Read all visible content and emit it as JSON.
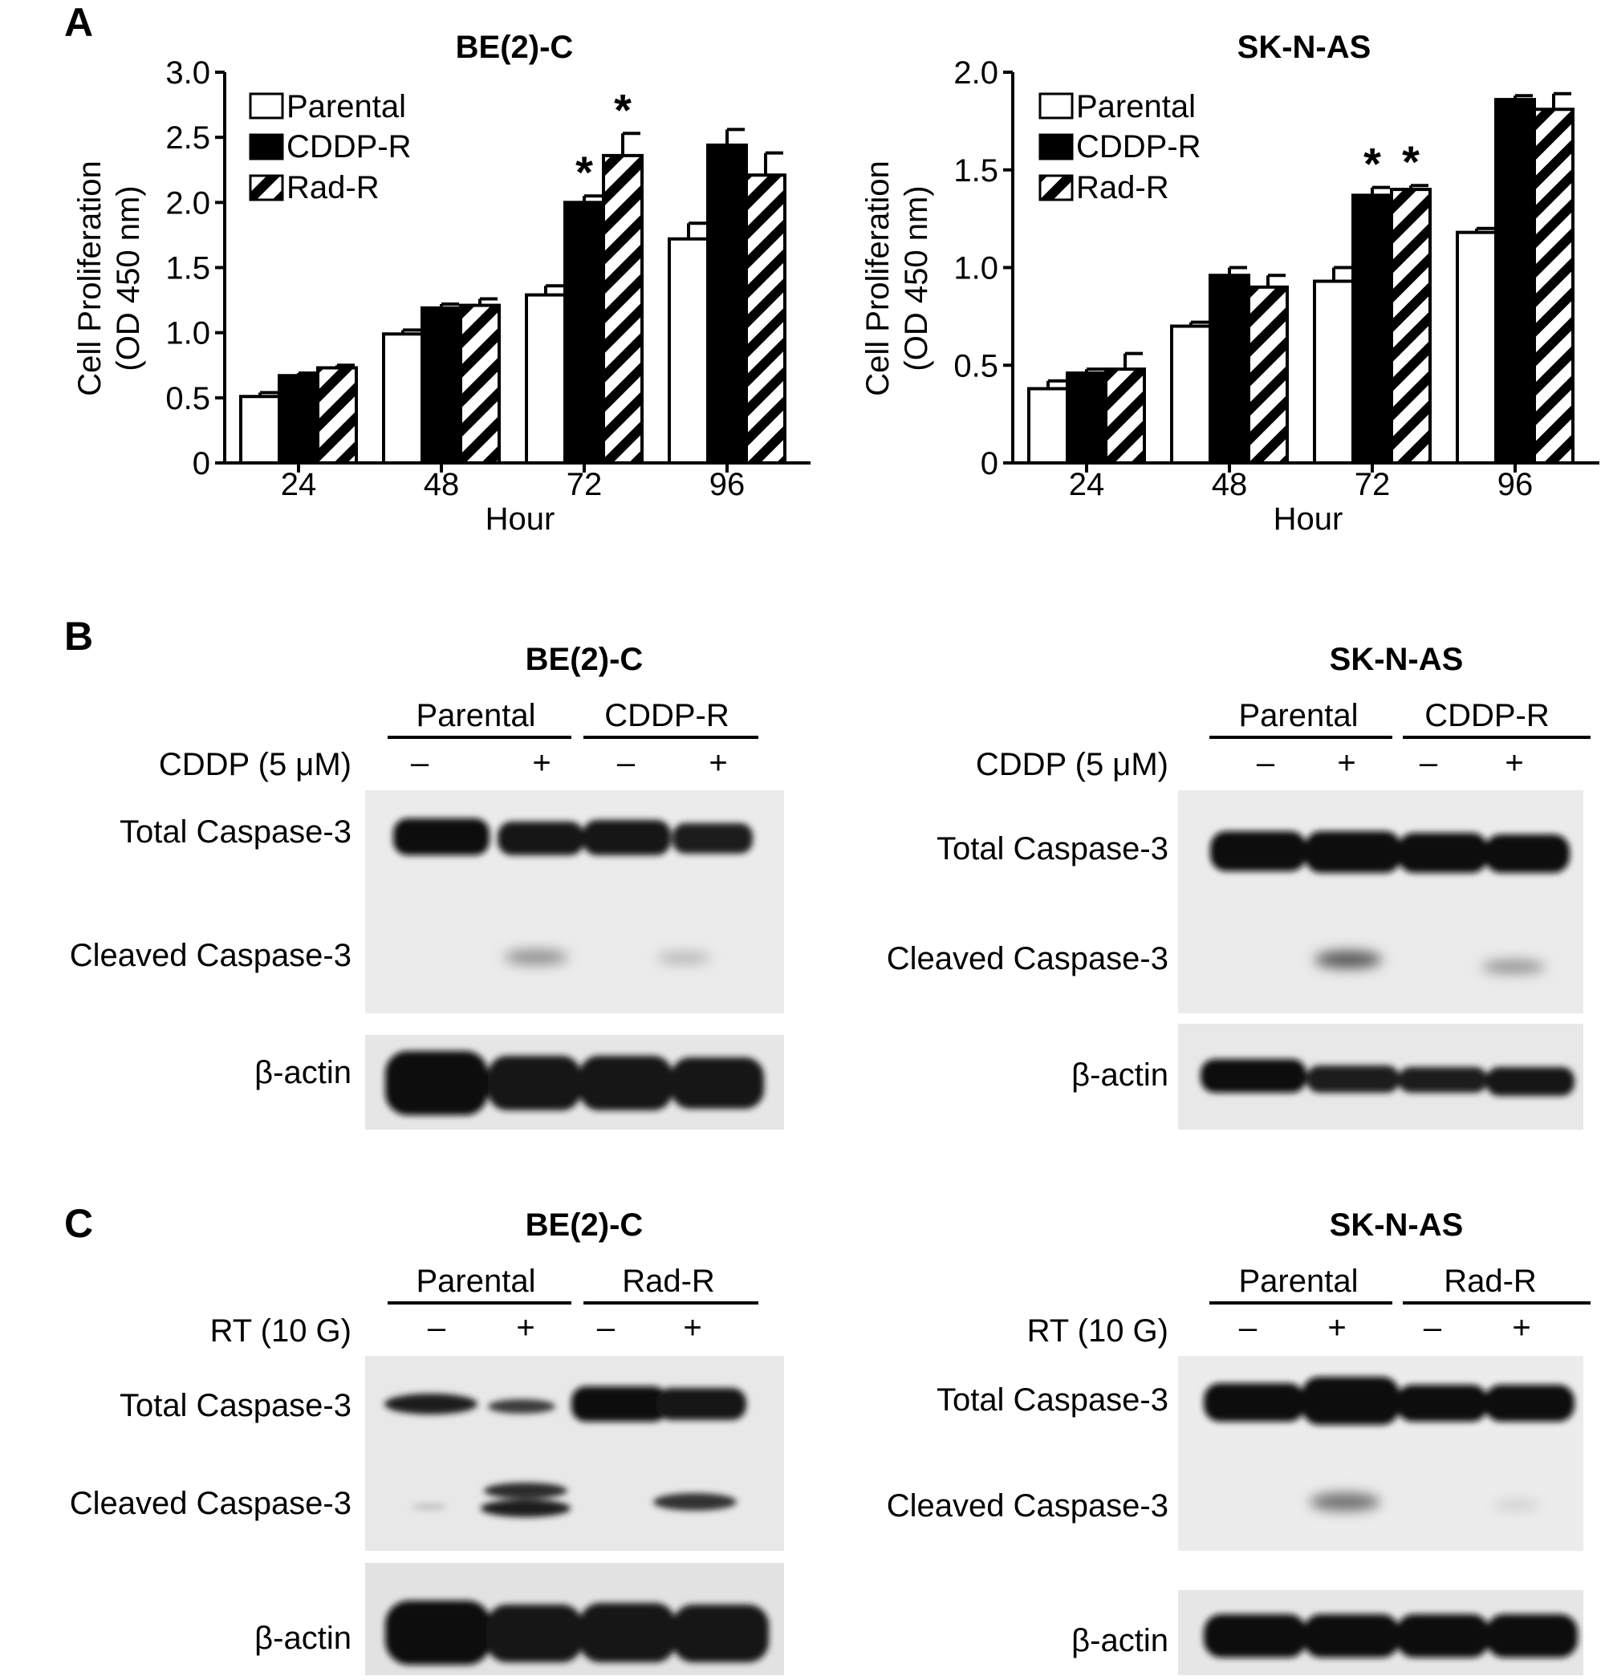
{
  "panel_letters": {
    "a": "A",
    "b": "B",
    "c": "C"
  },
  "chart_data": [
    {
      "type": "bar",
      "title": "BE(2)-C",
      "xlabel": "Hour",
      "ylabel": [
        "Cell Proliferation",
        "(OD 450 nm)"
      ],
      "categories": [
        "24",
        "48",
        "72",
        "96"
      ],
      "ylim": [
        0,
        3.0
      ],
      "yticks": [
        "0",
        "0.5",
        "1.0",
        "1.5",
        "2.0",
        "2.5",
        "3.0"
      ],
      "grid": false,
      "legend_position": "top-left",
      "series": [
        {
          "name": "Parental",
          "fill": "white",
          "values": [
            0.51,
            0.99,
            1.29,
            1.72
          ],
          "errors": [
            0.03,
            0.03,
            0.07,
            0.12
          ],
          "stars": [
            "",
            "",
            "",
            ""
          ]
        },
        {
          "name": "CDDP-R",
          "fill": "black",
          "values": [
            0.67,
            1.19,
            2.0,
            2.44
          ],
          "errors": [
            0.02,
            0.03,
            0.05,
            0.12
          ],
          "stars": [
            "",
            "",
            "*",
            ""
          ]
        },
        {
          "name": "Rad-R",
          "fill": "hatched",
          "values": [
            0.73,
            1.21,
            2.36,
            2.21
          ],
          "errors": [
            0.02,
            0.05,
            0.17,
            0.17
          ],
          "stars": [
            "",
            "",
            "*",
            ""
          ]
        }
      ]
    },
    {
      "type": "bar",
      "title": "SK-N-AS",
      "xlabel": "Hour",
      "ylabel": [
        "Cell Proliferation",
        "(OD 450 nm)"
      ],
      "categories": [
        "24",
        "48",
        "72",
        "96"
      ],
      "ylim": [
        0,
        2.0
      ],
      "yticks": [
        "0",
        "0.5",
        "1.0",
        "1.5",
        "2.0"
      ],
      "grid": false,
      "legend_position": "top-left",
      "series": [
        {
          "name": "Parental",
          "fill": "white",
          "values": [
            0.38,
            0.7,
            0.93,
            1.18
          ],
          "errors": [
            0.04,
            0.02,
            0.07,
            0.02
          ],
          "stars": [
            "",
            "",
            "",
            ""
          ]
        },
        {
          "name": "CDDP-R",
          "fill": "black",
          "values": [
            0.46,
            0.96,
            1.37,
            1.86
          ],
          "errors": [
            0.02,
            0.04,
            0.04,
            0.02
          ],
          "stars": [
            "",
            "",
            "*",
            ""
          ]
        },
        {
          "name": "Rad-R",
          "fill": "hatched",
          "values": [
            0.48,
            0.9,
            1.4,
            1.81
          ],
          "errors": [
            0.08,
            0.06,
            0.02,
            0.08
          ],
          "stars": [
            "",
            "",
            "*",
            ""
          ]
        }
      ]
    }
  ],
  "blots": {
    "b_left": {
      "title": "BE(2)-C",
      "groups": [
        "Parental",
        "CDDP-R"
      ],
      "treatment": "CDDP (5 μM)",
      "signs": [
        "–",
        "+",
        "–",
        "+"
      ],
      "rows": [
        "Total Caspase-3",
        "Cleaved Caspase-3",
        "β-actin"
      ]
    },
    "b_right": {
      "title": "SK-N-AS",
      "groups": [
        "Parental",
        "CDDP-R"
      ],
      "treatment": "CDDP (5 μM)",
      "signs": [
        "–",
        "+",
        "–",
        "+"
      ],
      "rows": [
        "Total Caspase-3",
        "Cleaved Caspase-3",
        "β-actin"
      ]
    },
    "c_left": {
      "title": "BE(2)-C",
      "groups": [
        "Parental",
        "Rad-R"
      ],
      "treatment": "RT (10 G)",
      "signs": [
        "–",
        "+",
        "–",
        "+"
      ],
      "rows": [
        "Total Caspase-3",
        "Cleaved Caspase-3",
        "β-actin"
      ]
    },
    "c_right": {
      "title": "SK-N-AS",
      "groups": [
        "Parental",
        "Rad-R"
      ],
      "treatment": "RT (10 G)",
      "signs": [
        "–",
        "+",
        "–",
        "+"
      ],
      "rows": [
        "Total Caspase-3",
        "Cleaved Caspase-3",
        "β-actin"
      ]
    }
  }
}
